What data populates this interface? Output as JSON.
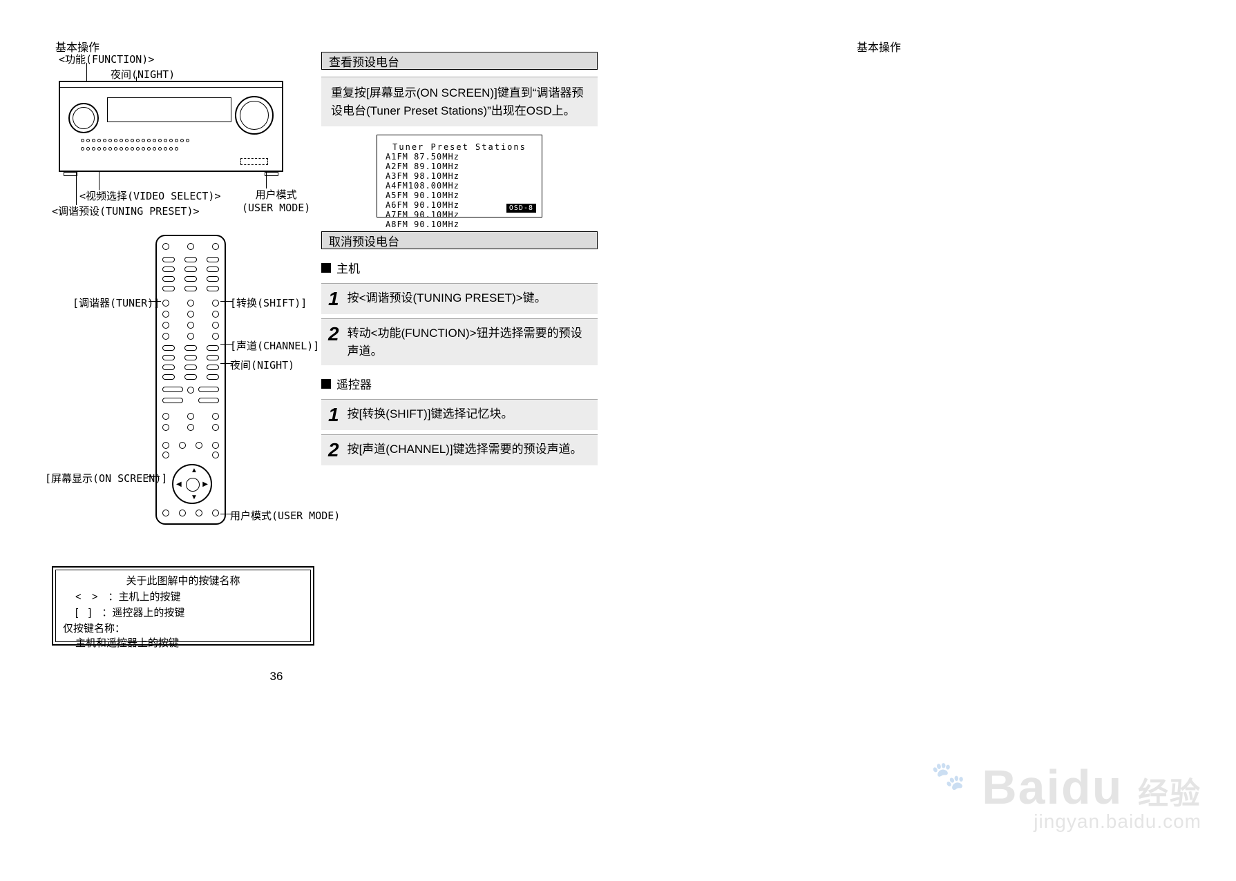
{
  "header": {
    "left": "基本操作",
    "right": "基本操作"
  },
  "receiver": {
    "label_function": "<功能(FUNCTION)>",
    "label_night": "夜间(NIGHT)",
    "label_video_select": "<视频选择(VIDEO SELECT)>",
    "label_tuning_preset": "<调谐预设(TUNING PRESET)>",
    "label_user_mode_1": "用户模式",
    "label_user_mode_2": "(USER MODE)"
  },
  "remote": {
    "label_tuner": "[调谐器(TUNER)]",
    "label_shift": "[转换(SHIFT)]",
    "label_channel": "[声道(CHANNEL)]",
    "label_night": "夜间(NIGHT)",
    "label_on_screen": "[屏幕显示(ON SCREEN)]",
    "label_user_mode": "用户模式(USER MODE)"
  },
  "legend": {
    "title": "关于此图解中的按键名称",
    "row_angle": "<　>　：主机上的按键",
    "row_square": "[　]　：遥控器上的按键",
    "only_title": "仅按键名称：",
    "only_sub": "主机和遥控器上的按键"
  },
  "section_view": {
    "title": "查看预设电台",
    "instruction": "重复按[屏幕显示(ON SCREEN)]键直到“调谐器预设电台(Tuner Preset Stations)”出现在OSD上。"
  },
  "osd": {
    "title": "Tuner Preset Stations",
    "rows": [
      "A1FM 87.50MHz",
      "A2FM 89.10MHz",
      "A3FM 98.10MHz",
      "A4FM108.00MHz",
      "A5FM 90.10MHz",
      "A6FM 90.10MHz",
      "A7FM 90.10MHz",
      "A8FM 90.10MHz"
    ],
    "badge": "OSD-8"
  },
  "section_cancel": {
    "title": "取消预设电台",
    "host_heading": "主机",
    "host_steps": [
      "按<调谐预设(TUNING PRESET)>键。",
      "转动<功能(FUNCTION)>钮并选择需要的预设声道。"
    ],
    "remote_heading": "遥控器",
    "remote_steps": [
      "按[转换(SHIFT)]键选择记忆块。",
      "按[声道(CHANNEL)]键选择需要的预设声道。"
    ]
  },
  "page_number": "36",
  "watermark": {
    "logo": "Bai",
    "logo2": "du",
    "tag": "经验",
    "sub": "jingyan.baidu.com"
  },
  "colors": {
    "bg": "#ffffff",
    "section_bar": "#dcdcdc",
    "step_bg": "#ececec",
    "border": "#000000",
    "watermark": "#888888"
  }
}
